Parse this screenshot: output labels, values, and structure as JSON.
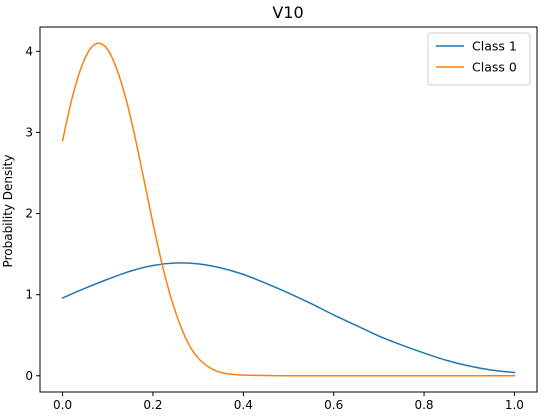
{
  "chart_data": {
    "type": "line",
    "title": "V10",
    "xlabel": "",
    "ylabel": "Probability Density",
    "xlim": [
      -0.05,
      1.05
    ],
    "ylim": [
      -0.2,
      4.3
    ],
    "xticks": [
      0.0,
      0.2,
      0.4,
      0.6,
      0.8,
      1.0
    ],
    "xtick_labels": [
      "0.0",
      "0.2",
      "0.4",
      "0.6",
      "0.8",
      "1.0"
    ],
    "yticks": [
      0,
      1,
      2,
      3,
      4
    ],
    "ytick_labels": [
      "0",
      "1",
      "2",
      "3",
      "4"
    ],
    "grid": false,
    "legend": "upper right",
    "series": [
      {
        "name": "Class 1",
        "color": "#1f77b4",
        "x": [
          0.0,
          0.05,
          0.1,
          0.15,
          0.2,
          0.25,
          0.3,
          0.35,
          0.4,
          0.45,
          0.5,
          0.55,
          0.6,
          0.65,
          0.7,
          0.75,
          0.8,
          0.85,
          0.9,
          0.95,
          1.0
        ],
        "y": [
          0.96,
          1.08,
          1.19,
          1.29,
          1.36,
          1.39,
          1.38,
          1.33,
          1.25,
          1.14,
          1.02,
          0.89,
          0.75,
          0.62,
          0.49,
          0.38,
          0.28,
          0.19,
          0.12,
          0.07,
          0.04
        ]
      },
      {
        "name": "Class 0",
        "color": "#ff7f0e",
        "x": [
          0.0,
          0.02,
          0.04,
          0.06,
          0.08,
          0.1,
          0.12,
          0.14,
          0.16,
          0.18,
          0.2,
          0.22,
          0.24,
          0.26,
          0.28,
          0.3,
          0.32,
          0.34,
          0.36,
          0.38,
          0.4,
          0.45,
          0.5,
          0.6,
          0.7,
          0.8,
          0.9,
          1.0
        ],
        "y": [
          2.9,
          3.4,
          3.78,
          4.02,
          4.1,
          4.02,
          3.78,
          3.42,
          2.95,
          2.42,
          1.88,
          1.38,
          0.96,
          0.63,
          0.38,
          0.22,
          0.12,
          0.06,
          0.03,
          0.015,
          0.008,
          0.003,
          0.0,
          0.0,
          0.0,
          0.0,
          0.0,
          0.0
        ]
      }
    ]
  }
}
